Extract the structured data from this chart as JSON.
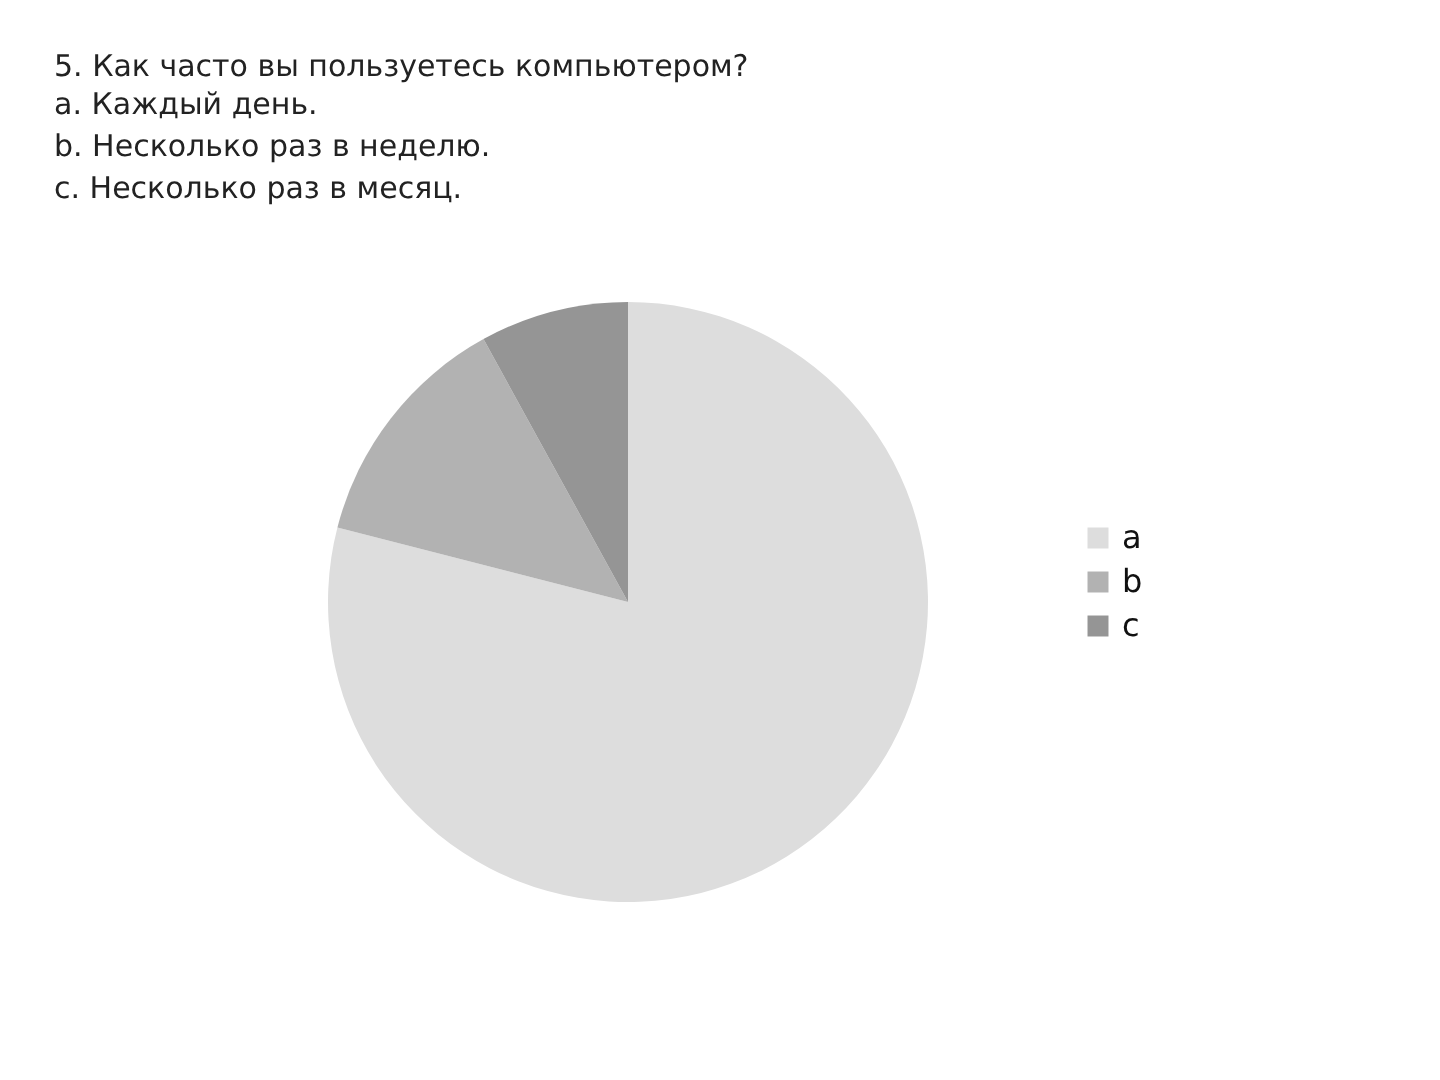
{
  "chart_data": {
    "type": "pie",
    "title": "5. Как часто вы пользуетесь компьютером?",
    "annotations": [
      "a. Каждый день.",
      "b. Несколько раз в неделю.",
      "c. Несколько раз в месяц."
    ],
    "categories": [
      "a",
      "b",
      "c"
    ],
    "values": [
      79,
      13,
      8
    ],
    "colors": [
      "#dddddd",
      "#b2b2b2",
      "#959595"
    ],
    "legend": "right"
  }
}
